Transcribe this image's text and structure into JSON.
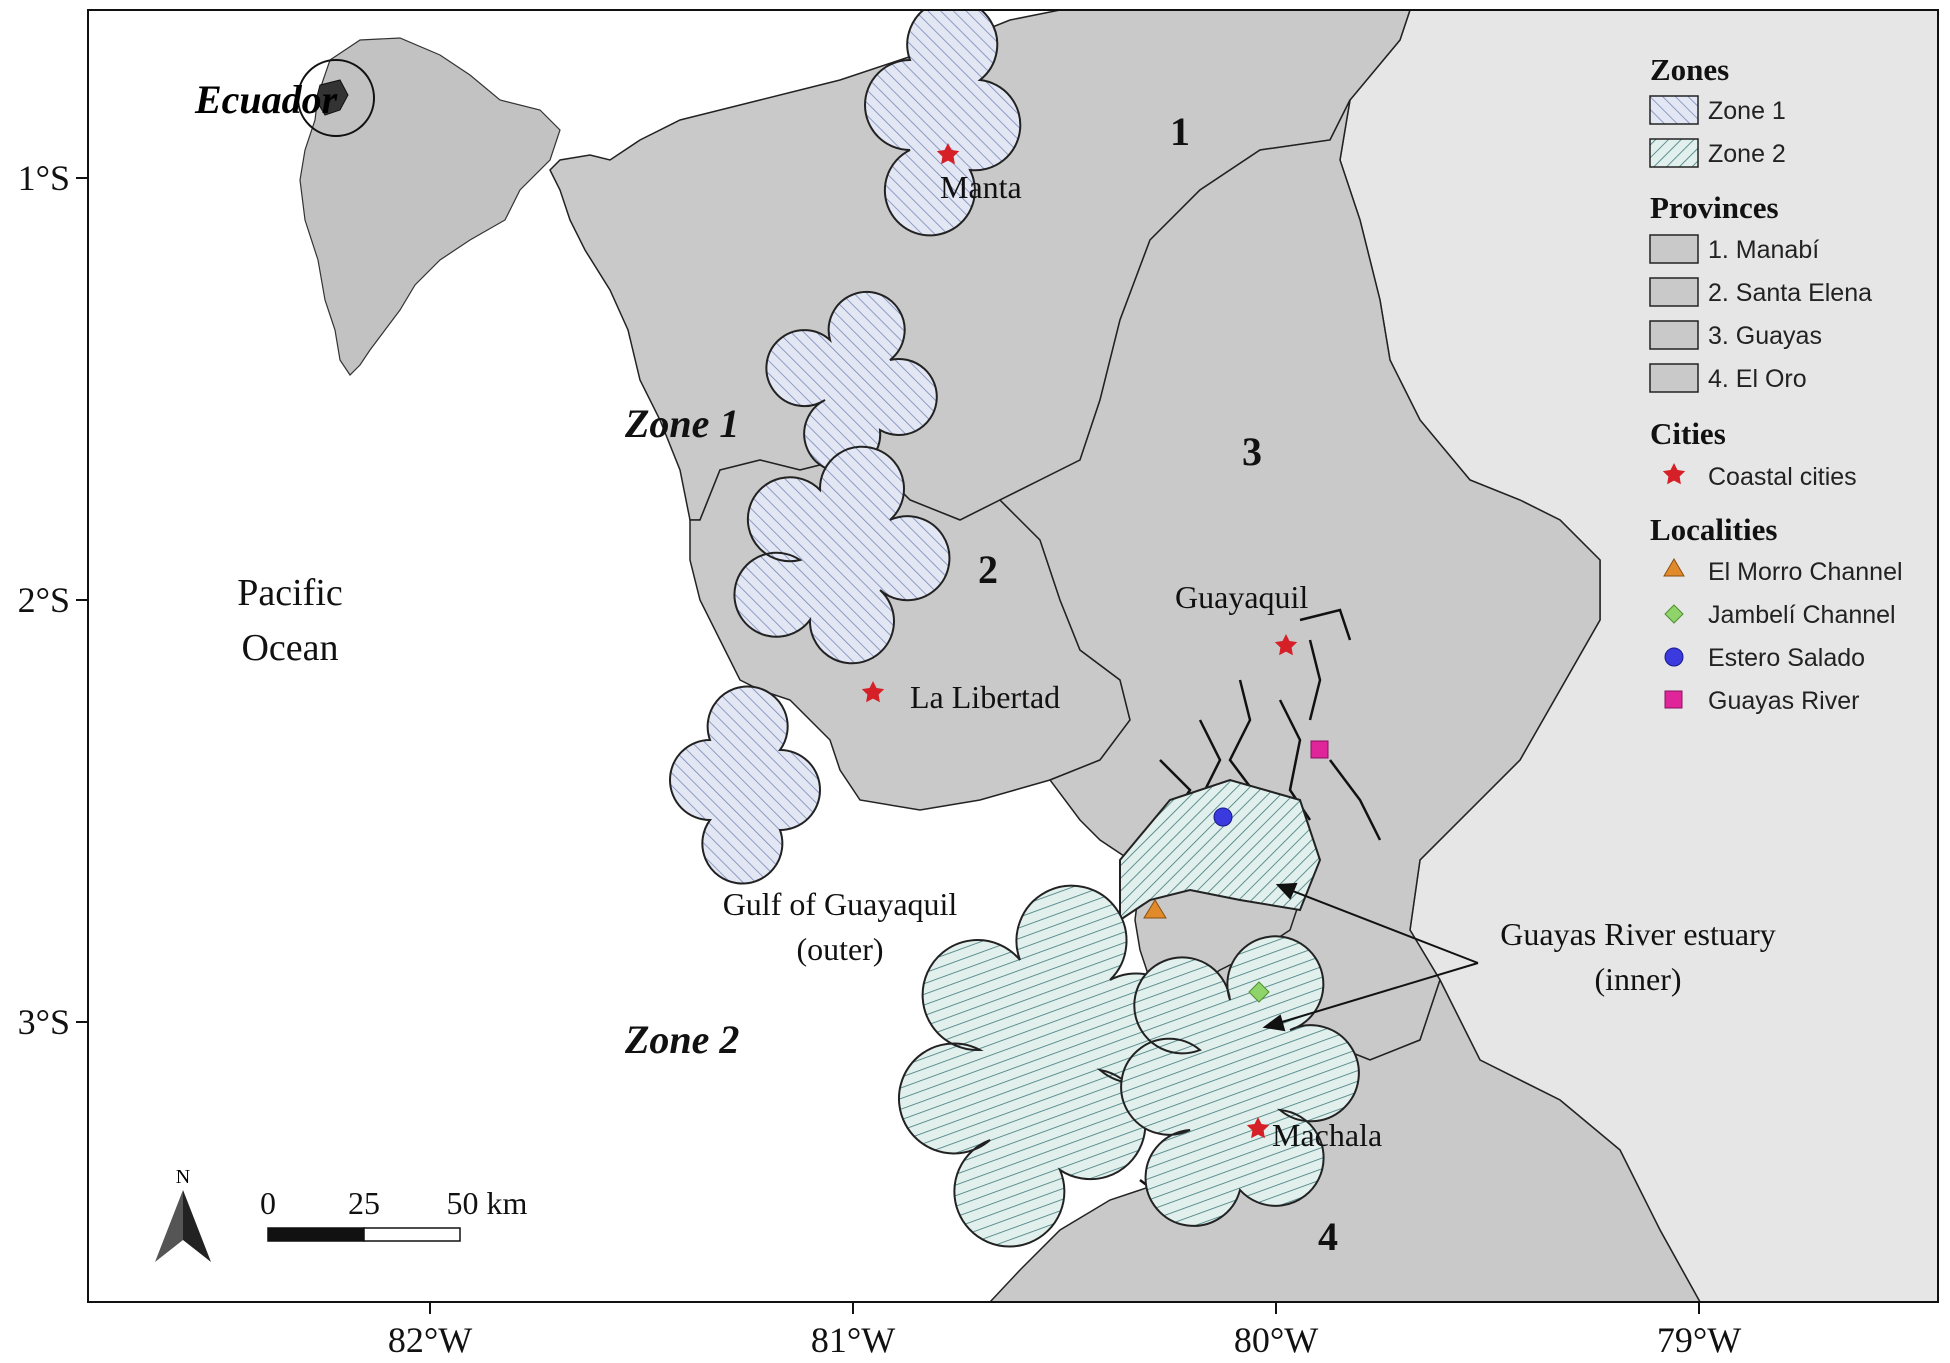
{
  "map": {
    "axis": {
      "x_ticks": [
        "82°W",
        "81°W",
        "80°W",
        "79°W"
      ],
      "y_ticks": [
        "1°S",
        "2°S",
        "3°S"
      ]
    },
    "inset": {
      "label": "Ecuador"
    },
    "sea_label": {
      "line1": "Pacific",
      "line2": "Ocean"
    },
    "zone_labels": {
      "zone1": "Zone 1",
      "zone2": "Zone 2"
    },
    "province_numbers": [
      "1",
      "2",
      "3",
      "4"
    ],
    "cities": {
      "manta": "Manta",
      "la_libertad": "La Libertad",
      "guayaquil": "Guayaquil",
      "machala": "Machala"
    },
    "gulf_label": {
      "line1": "Gulf of Guayaquil",
      "line2": "(outer)"
    },
    "estuary_label": {
      "line1": "Guayas River estuary",
      "line2": "(inner)"
    },
    "scale_bar": {
      "t0": "0",
      "t25": "25",
      "t50": "50 km"
    },
    "north_arrow": {
      "label": "N"
    }
  },
  "legend": {
    "zones": {
      "title": "Zones",
      "items": [
        "Zone 1",
        "Zone 2"
      ]
    },
    "provinces": {
      "title": "Provinces",
      "items": [
        "1. Manabí",
        "2. Santa Elena",
        "3. Guayas",
        "4. El Oro"
      ]
    },
    "cities": {
      "title": "Cities",
      "items": [
        "Coastal cities"
      ]
    },
    "localities": {
      "title": "Localities",
      "items": [
        "El Morro Channel",
        "Jambelí Channel",
        "Estero Salado",
        "Guayas River"
      ]
    }
  },
  "colors": {
    "land": "#c9c9c9",
    "other_land": "#e6e6e6",
    "sea": "#ffffff",
    "zone1_hatch": "#7a8ab8",
    "zone1_fill": "#e3e7f3",
    "zone2_hatch": "#3f7a78",
    "zone2_fill": "#e1efed",
    "city_star": "#d62027",
    "el_morro": "#e08a2c",
    "jambeli": "#8fd46a",
    "estero_salado": "#3a3adf",
    "guayas_river": "#e0259a"
  }
}
